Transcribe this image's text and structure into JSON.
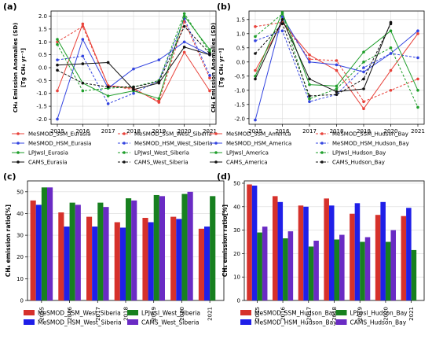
{
  "chart_data": [
    {
      "panel": "(a)",
      "type": "line",
      "ylabel_main": "CH₄ Emission Anomalies (SD)",
      "ylabel_unit": "[Tg CH₄ yr⁻¹]",
      "x": [
        2015,
        2016,
        2017,
        2018,
        2019,
        2020,
        2021
      ],
      "ylim": [
        -2.2,
        2.2
      ],
      "yticks": [
        -2.0,
        -1.5,
        -1.0,
        -0.5,
        0.0,
        0.5,
        1.0,
        1.5,
        2.0
      ],
      "grid": true,
      "series": [
        {
          "name": "MeSMOD_SSM_Eurasia",
          "color": "#e8423a",
          "dash": false,
          "values": [
            -0.9,
            1.7,
            -0.7,
            -0.8,
            -1.35,
            0.6,
            -0.9
          ]
        },
        {
          "name": "MeSMOD_SSM_West_Siberia",
          "color": "#e8423a",
          "dash": true,
          "values": [
            1.0,
            1.6,
            -0.7,
            -0.85,
            -1.3,
            1.8,
            -0.4
          ]
        },
        {
          "name": "MeSMOD_HSM_Eurasia",
          "color": "#3344e0",
          "dash": false,
          "values": [
            -2.0,
            1.1,
            -0.8,
            -0.05,
            0.3,
            1.0,
            0.5
          ]
        },
        {
          "name": "MeSMOD_HSM_West_Siberia",
          "color": "#3344e0",
          "dash": true,
          "values": [
            0.3,
            0.45,
            -1.4,
            -1.0,
            -0.5,
            1.9,
            -0.3
          ]
        },
        {
          "name": "LPJwsl_Eurasia",
          "color": "#1e9e2a",
          "dash": false,
          "values": [
            1.1,
            -0.6,
            -1.1,
            -0.9,
            -1.2,
            2.0,
            0.7
          ]
        },
        {
          "name": "LPJwsl_West_Siberia",
          "color": "#1e9e2a",
          "dash": true,
          "values": [
            0.9,
            -0.9,
            -0.8,
            -0.75,
            -0.5,
            2.1,
            0.6
          ]
        },
        {
          "name": "CAMS_Eurasia",
          "color": "#111111",
          "dash": false,
          "values": [
            0.1,
            0.15,
            0.2,
            -0.85,
            -0.6,
            0.8,
            0.5
          ]
        },
        {
          "name": "CAMS_West_Siberia",
          "color": "#111111",
          "dash": true,
          "values": [
            -0.1,
            -0.6,
            -0.75,
            -0.75,
            -0.55,
            1.6,
            0.55
          ]
        }
      ]
    },
    {
      "panel": "(b)",
      "type": "line",
      "ylabel_main": "CH₄ Emission Anomalies (SD)",
      "ylabel_unit": "[Tg CH₄ yr⁻¹]",
      "x": [
        2015,
        2016,
        2017,
        2018,
        2019,
        2020,
        2021
      ],
      "ylim": [
        -2.2,
        1.8
      ],
      "yticks": [
        -2.0,
        -1.5,
        -1.0,
        -0.5,
        0.0,
        0.5,
        1.0,
        1.5
      ],
      "grid": true,
      "series": [
        {
          "name": "MeSMOD_SSM_America",
          "color": "#e8423a",
          "dash": false,
          "values": [
            -0.3,
            1.4,
            0.25,
            -0.3,
            -1.65,
            -0.3,
            1.0
          ]
        },
        {
          "name": "MeSMOD_SSM_Hudson_Bay",
          "color": "#e8423a",
          "dash": true,
          "values": [
            1.25,
            1.4,
            0.1,
            0.05,
            -1.4,
            -1.0,
            -0.6
          ]
        },
        {
          "name": "MeSMOD_HSM_America",
          "color": "#3344e0",
          "dash": false,
          "values": [
            -2.05,
            1.6,
            0.0,
            -0.1,
            -0.35,
            0.3,
            1.1
          ]
        },
        {
          "name": "MeSMOD_HSM_Hudson_Bay",
          "color": "#3344e0",
          "dash": true,
          "values": [
            0.75,
            1.1,
            -1.4,
            -1.15,
            -0.2,
            0.3,
            0.15
          ]
        },
        {
          "name": "LPJwsl_America",
          "color": "#1e9e2a",
          "dash": false,
          "values": [
            -0.5,
            1.75,
            -0.8,
            -0.85,
            0.35,
            1.1,
            -1.0
          ]
        },
        {
          "name": "LPJwsl_Hudson_Bay",
          "color": "#1e9e2a",
          "dash": true,
          "values": [
            0.9,
            1.7,
            -1.3,
            -0.95,
            0.0,
            0.5,
            -1.6
          ]
        },
        {
          "name": "CAMS_America",
          "color": "#111111",
          "dash": false,
          "values": [
            -0.6,
            1.5,
            -0.6,
            -1.05,
            -0.95,
            1.4,
            null
          ]
        },
        {
          "name": "CAMS_Hudson_Bay",
          "color": "#111111",
          "dash": true,
          "values": [
            0.3,
            1.35,
            -1.2,
            -1.15,
            -0.6,
            1.35,
            null
          ]
        }
      ]
    },
    {
      "panel": "(c)",
      "type": "bar",
      "ylabel": "CH₄ emission ratio[%]",
      "categories": [
        "2015",
        "2016",
        "2017",
        "2018",
        "2019",
        "2020",
        "2021"
      ],
      "ylim": [
        0,
        55
      ],
      "yticks": [
        0,
        10,
        20,
        30,
        40,
        50
      ],
      "grid": true,
      "series": [
        {
          "name": "MeSMOD_SSM_West_Siberia",
          "color": "#d6312b",
          "values": [
            46,
            40.5,
            38.5,
            36,
            38,
            38.5,
            33
          ]
        },
        {
          "name": "MeSMOD_HSM_West_Siberia",
          "color": "#1f1fe8",
          "values": [
            44,
            34,
            34,
            33.5,
            36,
            37.5,
            34
          ]
        },
        {
          "name": "LPJwsl_West_Siberia",
          "color": "#17801f",
          "values": [
            52,
            45,
            45,
            47,
            48.5,
            49,
            48
          ]
        },
        {
          "name": "CAMS_West_Siberia",
          "color": "#6a2bc4",
          "values": [
            52,
            44,
            43,
            46,
            48,
            50,
            null
          ]
        }
      ]
    },
    {
      "panel": "(d)",
      "type": "bar",
      "ylabel": "CH₄ emission ratio[%]",
      "categories": [
        "2015",
        "2016",
        "2017",
        "2018",
        "2019",
        "2020",
        "2021"
      ],
      "ylim": [
        0,
        51
      ],
      "yticks": [
        0,
        10,
        20,
        30,
        40,
        50
      ],
      "grid": true,
      "series": [
        {
          "name": "MeSMOD_SSM_Hudson_Bay",
          "color": "#d6312b",
          "values": [
            49.5,
            44.5,
            40.5,
            43.5,
            37,
            36.5,
            36
          ]
        },
        {
          "name": "MeSMOD_HSM_Hudson_Bay",
          "color": "#1f1fe8",
          "values": [
            49,
            42,
            40,
            40.5,
            41.5,
            42,
            39.5
          ]
        },
        {
          "name": "LPJwsl_Hudson_Bay",
          "color": "#17801f",
          "values": [
            29,
            26.5,
            23,
            26,
            25,
            25,
            21.5
          ]
        },
        {
          "name": "CAMS_Hudson_Bay",
          "color": "#6a2bc4",
          "values": [
            31.5,
            29.5,
            25.5,
            28,
            27,
            30,
            null
          ]
        }
      ]
    }
  ]
}
